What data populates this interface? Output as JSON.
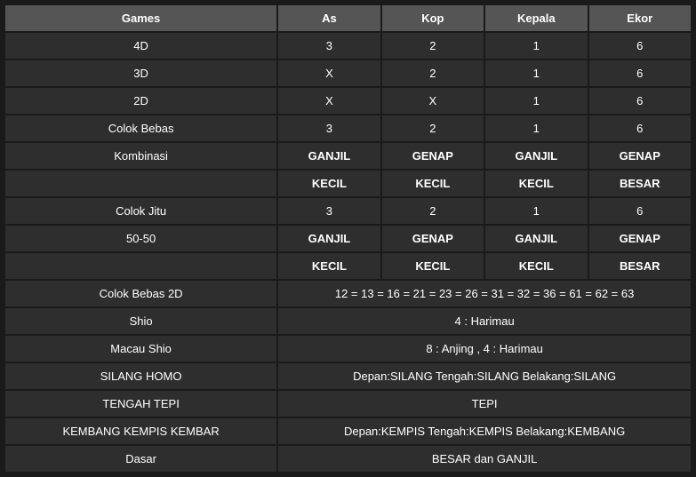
{
  "table": {
    "header_bg": "#555555",
    "cell_bg": "#2e2e2e",
    "page_bg": "#1a1a1a",
    "text_color": "#ffffff",
    "columns": [
      "Games",
      "As",
      "Kop",
      "Kepala",
      "Ekor"
    ],
    "rows": [
      {
        "label": "4D",
        "cells": [
          "3",
          "2",
          "1",
          "6"
        ],
        "bold": false
      },
      {
        "label": "3D",
        "cells": [
          "X",
          "2",
          "1",
          "6"
        ],
        "bold": false
      },
      {
        "label": "2D",
        "cells": [
          "X",
          "X",
          "1",
          "6"
        ],
        "bold": false
      },
      {
        "label": "Colok Bebas",
        "cells": [
          "3",
          "2",
          "1",
          "6"
        ],
        "bold": false
      },
      {
        "label": "Kombinasi",
        "cells": [
          "GANJIL",
          "GENAP",
          "GANJIL",
          "GENAP"
        ],
        "bold": true
      },
      {
        "label": "",
        "cells": [
          "KECIL",
          "KECIL",
          "KECIL",
          "BESAR"
        ],
        "bold": true
      },
      {
        "label": "Colok Jitu",
        "cells": [
          "3",
          "2",
          "1",
          "6"
        ],
        "bold": false
      },
      {
        "label": "50-50",
        "cells": [
          "GANJIL",
          "GENAP",
          "GANJIL",
          "GENAP"
        ],
        "bold": true
      },
      {
        "label": "",
        "cells": [
          "KECIL",
          "KECIL",
          "KECIL",
          "BESAR"
        ],
        "bold": true
      }
    ],
    "merged_rows": [
      {
        "label": "Colok Bebas 2D",
        "text": "12 = 13 = 16 = 21 = 23 = 26 = 31 = 32 = 36 = 61 = 62 = 63"
      },
      {
        "label": "Shio",
        "text": "4 : Harimau"
      },
      {
        "label": "Macau Shio",
        "text": "8 : Anjing , 4 : Harimau"
      },
      {
        "label": "SILANG HOMO",
        "text": "Depan:SILANG Tengah:SILANG Belakang:SILANG"
      },
      {
        "label": "TENGAH TEPI",
        "text": "TEPI"
      },
      {
        "label": "KEMBANG KEMPIS KEMBAR",
        "text": "Depan:KEMPIS Tengah:KEMPIS Belakang:KEMBANG"
      },
      {
        "label": "Dasar",
        "text": "BESAR dan GANJIL"
      }
    ]
  }
}
